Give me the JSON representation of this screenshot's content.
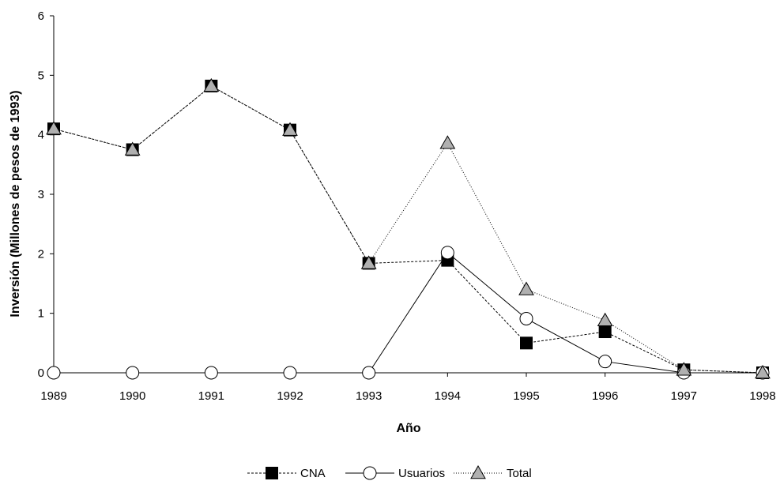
{
  "chart_data": {
    "type": "line",
    "title": "",
    "xlabel": "Año",
    "ylabel": "Inversión (Millones de pesos de 1993)",
    "x": [
      1989,
      1990,
      1991,
      1992,
      1993,
      1994,
      1995,
      1996,
      1997,
      1998
    ],
    "x_tick_labels": [
      "1989",
      "1990",
      "1991",
      "1992",
      "1993",
      "1994",
      "1995",
      "1996",
      "1997",
      "1998"
    ],
    "y_tick_labels": [
      "0",
      "1",
      "2",
      "3",
      "4",
      "5",
      "6"
    ],
    "ylim": [
      0,
      6
    ],
    "grid": false,
    "legend_position": "bottom",
    "series": [
      {
        "name": "CNA",
        "marker": "square",
        "line_style": "dashed",
        "marker_fill": "#000000",
        "values": [
          4.1,
          3.75,
          4.82,
          4.08,
          1.84,
          1.89,
          0.5,
          0.69,
          0.05,
          0.0
        ]
      },
      {
        "name": "Usuarios",
        "marker": "circle",
        "line_style": "solid",
        "marker_fill": "#ffffff",
        "values": [
          0.0,
          0.0,
          0.0,
          0.0,
          0.0,
          2.02,
          0.91,
          0.19,
          0.0,
          0.0
        ]
      },
      {
        "name": "Total",
        "marker": "triangle",
        "line_style": "dotted",
        "marker_fill": "#b0b0b0",
        "values": [
          4.1,
          3.75,
          4.82,
          4.08,
          1.84,
          3.86,
          1.4,
          0.88,
          0.05,
          0.0
        ]
      }
    ]
  }
}
